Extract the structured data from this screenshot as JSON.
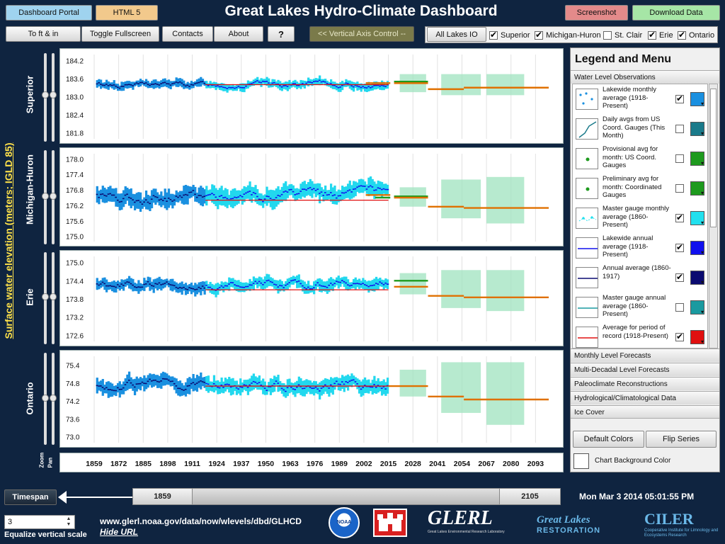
{
  "header": {
    "title": "Great Lakes Hydro-Climate Dashboard",
    "buttons": {
      "dashboard_portal": "Dashboard Portal",
      "html5": "HTML 5",
      "screenshot": "Screenshot",
      "download_data": "Download Data",
      "to_ft_in": "To ft & in",
      "toggle_fullscreen": "Toggle Fullscreen",
      "contacts": "Contacts",
      "about": "About",
      "help": "?",
      "vertical_axis": "<< Vertical Axis Control --",
      "all_lakes": "All Lakes IO"
    },
    "colors": {
      "dashboard_portal": "#9fd3ef",
      "html5": "#f2c98c",
      "screenshot": "#e38a8a",
      "download_data": "#a6e6a6",
      "vertical_axis": "#7a7a4a"
    },
    "lakes": [
      {
        "name": "Superior",
        "checked": true
      },
      {
        "name": "Michigan-Huron",
        "checked": true
      },
      {
        "name": "St. Clair",
        "checked": false
      },
      {
        "name": "Erie",
        "checked": true
      },
      {
        "name": "Ontario",
        "checked": true
      }
    ]
  },
  "y_axis_title": "Surface water elevation (meters; IGLD 85)",
  "chart_data": [
    {
      "type": "line",
      "lake": "Superior",
      "yticks": [
        "184.2",
        "183.6",
        "183.0",
        "182.4",
        "181.8"
      ],
      "ylim": [
        181.6,
        184.4
      ],
      "mean": 183.4,
      "obs_center": 183.4,
      "obs_amp": 0.25,
      "forecast": [
        {
          "x0": 2003,
          "x1": 2016,
          "v": 183.45,
          "c": "#e07000"
        },
        {
          "x0": 2018,
          "x1": 2036,
          "v": 183.5,
          "c": "#1e9a1e"
        },
        {
          "x0": 2018,
          "x1": 2036,
          "v": 183.45,
          "c": "#e07000"
        },
        {
          "x0": 2036,
          "x1": 2055,
          "v": 183.25,
          "c": "#e07000"
        },
        {
          "x0": 2055,
          "x1": 2100,
          "v": 183.3,
          "c": "#e07000"
        }
      ],
      "boxes": [
        {
          "x0": 2021,
          "x1": 2035,
          "lo": 183.15,
          "hi": 183.75
        },
        {
          "x0": 2043,
          "x1": 2064,
          "lo": 183.05,
          "hi": 183.75
        },
        {
          "x0": 2067,
          "x1": 2087,
          "lo": 183.05,
          "hi": 183.75
        }
      ]
    },
    {
      "type": "line",
      "lake": "Michigan-Huron",
      "yticks": [
        "178.0",
        "177.4",
        "176.8",
        "176.2",
        "175.6",
        "175.0"
      ],
      "ylim": [
        174.8,
        178.2
      ],
      "mean": 176.4,
      "obs_center": 176.6,
      "obs_amp": 0.6,
      "forecast": [
        {
          "x0": 2003,
          "x1": 2016,
          "v": 176.6,
          "c": "#e07000"
        },
        {
          "x0": 2008,
          "x1": 2016,
          "v": 176.5,
          "c": "#1e9a1e"
        },
        {
          "x0": 2018,
          "x1": 2036,
          "v": 176.55,
          "c": "#1e9a1e"
        },
        {
          "x0": 2018,
          "x1": 2036,
          "v": 176.5,
          "c": "#e07000"
        },
        {
          "x0": 2036,
          "x1": 2055,
          "v": 176.15,
          "c": "#e07000"
        },
        {
          "x0": 2055,
          "x1": 2100,
          "v": 176.1,
          "c": "#e07000"
        }
      ],
      "boxes": [
        {
          "x0": 2021,
          "x1": 2035,
          "lo": 176.15,
          "hi": 176.9
        },
        {
          "x0": 2043,
          "x1": 2064,
          "lo": 175.7,
          "hi": 177.2
        },
        {
          "x0": 2067,
          "x1": 2087,
          "lo": 175.5,
          "hi": 177.3
        }
      ]
    },
    {
      "type": "line",
      "lake": "Erie",
      "yticks": [
        "175.0",
        "174.4",
        "173.8",
        "173.2",
        "172.6"
      ],
      "ylim": [
        172.4,
        175.2
      ],
      "mean": 174.1,
      "obs_center": 174.3,
      "obs_amp": 0.35,
      "forecast": [
        {
          "x0": 2018,
          "x1": 2036,
          "v": 174.4,
          "c": "#1e9a1e"
        },
        {
          "x0": 2018,
          "x1": 2036,
          "v": 174.2,
          "c": "#e07000"
        },
        {
          "x0": 2036,
          "x1": 2055,
          "v": 173.9,
          "c": "#e07000"
        },
        {
          "x0": 2055,
          "x1": 2100,
          "v": 173.85,
          "c": "#e07000"
        }
      ],
      "boxes": [
        {
          "x0": 2021,
          "x1": 2035,
          "lo": 173.95,
          "hi": 174.65
        },
        {
          "x0": 2043,
          "x1": 2064,
          "lo": 173.5,
          "hi": 174.75
        },
        {
          "x0": 2067,
          "x1": 2087,
          "lo": 173.4,
          "hi": 174.75
        }
      ]
    },
    {
      "type": "line",
      "lake": "Ontario",
      "yticks": [
        "75.4",
        "74.8",
        "74.2",
        "73.6",
        "73.0"
      ],
      "ylim": [
        72.8,
        75.7
      ],
      "mean": 74.7,
      "obs_center": 74.75,
      "obs_amp": 0.45,
      "forecast": [
        {
          "x0": 2015,
          "x1": 2036,
          "v": 74.7,
          "c": "#e07000"
        },
        {
          "x0": 2036,
          "x1": 2055,
          "v": 74.35,
          "c": "#e07000"
        },
        {
          "x0": 2055,
          "x1": 2100,
          "v": 74.25,
          "c": "#e07000"
        }
      ],
      "boxes": [
        {
          "x0": 2021,
          "x1": 2035,
          "lo": 74.35,
          "hi": 75.25
        },
        {
          "x0": 2043,
          "x1": 2064,
          "lo": 73.8,
          "hi": 75.5
        },
        {
          "x0": 2067,
          "x1": 2087,
          "lo": 73.4,
          "hi": 75.5
        }
      ]
    }
  ],
  "x_axis": {
    "ticks": [
      "1859",
      "1872",
      "1885",
      "1898",
      "1911",
      "1924",
      "1937",
      "1950",
      "1963",
      "1976",
      "1989",
      "2002",
      "2015",
      "2028",
      "2041",
      "2054",
      "2067",
      "2080",
      "2093"
    ],
    "xlim": [
      1856,
      2106
    ]
  },
  "zoom_pan": {
    "zoom": "Zoom",
    "pan": "Pan"
  },
  "legend": {
    "title": "Legend and Menu",
    "open_section": "Water Level Observations",
    "items": [
      {
        "label": "Lakewide monthly average (1918-Present)",
        "checked": true,
        "color": "#1a90e0",
        "icon": "dots-icon"
      },
      {
        "label": "Daily avgs from US Coord. Gauges (This Month)",
        "checked": false,
        "color": "#1a7a8a",
        "icon": "line-rising-icon"
      },
      {
        "label": "Provisional avg for month: US Coord. Gauges",
        "checked": false,
        "color": "#1e9a1e",
        "icon": "point-icon"
      },
      {
        "label": "Preliminary avg for month: Coordinated Gauges",
        "checked": false,
        "color": "#1e9a1e",
        "icon": "point-icon"
      },
      {
        "label": "Master gauge monthly average (1860-Present)",
        "checked": true,
        "color": "#22e0ee",
        "icon": "diamonds-icon"
      },
      {
        "label": "Lakewide annual average (1918-Present)",
        "checked": true,
        "color": "#1010ee",
        "icon": "line-blue-icon"
      },
      {
        "label": "Annual average (1860-1917)",
        "checked": true,
        "color": "#0a0a70",
        "icon": "line-navy-icon"
      },
      {
        "label": "Master gauge annual average (1860-Present)",
        "checked": false,
        "color": "#1a9aa0",
        "icon": "line-teal-icon"
      },
      {
        "label": "Average for period of record (1918-Present)",
        "checked": true,
        "color": "#e01010",
        "icon": "line-red-icon"
      }
    ],
    "sections": [
      "Monthly Level Forecasts",
      "Multi-Decadal Level Forecasts",
      "Paleoclimate Reconstructions",
      "Hydrological/Climatological Data",
      "Ice Cover"
    ],
    "default_colors": "Default Colors",
    "flip_series": "Flip Series",
    "bg_color_label": "Chart Background Color"
  },
  "timespan": {
    "label": "Timespan",
    "start": "1859",
    "end": "2105"
  },
  "datetime": "Mon Mar 3 2014 05:01:55 PM",
  "footer": {
    "stepper_value": "3",
    "equalize": "Equalize vertical scale",
    "url": "www.glerl.noaa.gov/data/now/wlevels/dbd/GLHCD",
    "hide_url": "Hide URL",
    "logos": {
      "noaa": "NOAA",
      "glerl": "GLERL",
      "glerl_sub": "Great Lakes Environmental Research Laboratory",
      "glr_1": "Great Lakes",
      "glr_2": "RESTORATION",
      "ciler": "CILER",
      "ciler_sub": "Cooperative Institute for Limnology and Ecosystems Research"
    }
  }
}
